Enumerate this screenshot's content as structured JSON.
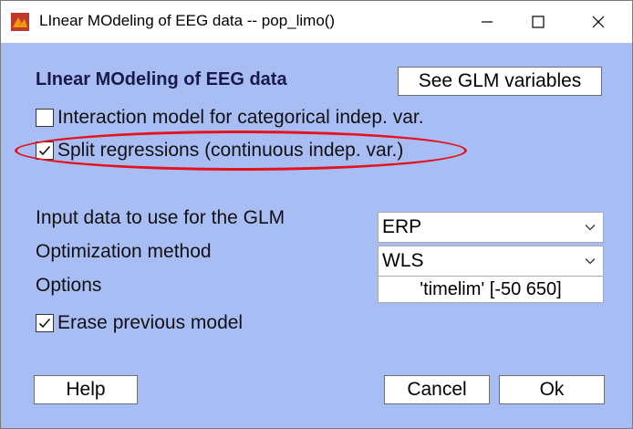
{
  "window": {
    "title": "LInear MOdeling of EEG data -- pop_limo()",
    "icon": "matlab-icon",
    "controls": [
      "minimize-icon",
      "maximize-icon",
      "close-icon"
    ]
  },
  "dialog": {
    "heading": "LInear MOdeling of EEG data",
    "glm_button": "See GLM variables",
    "interaction_checkbox": {
      "label": "Interaction model for categorical indep. var.",
      "checked": false
    },
    "split_checkbox": {
      "label": "Split regressions (continuous indep. var.)",
      "checked": true,
      "highlighted": true
    },
    "input_data": {
      "label": "Input data to use for the GLM",
      "value": "ERP"
    },
    "optimization": {
      "label": "Optimization method",
      "value": "WLS"
    },
    "options": {
      "label": "Options",
      "value": "'timelim' [-50 650]"
    },
    "erase_checkbox": {
      "label": "Erase previous model",
      "checked": true
    },
    "help_button": "Help",
    "cancel_button": "Cancel",
    "ok_button": "Ok"
  },
  "colors": {
    "dialog_background": "#a9bdf5",
    "highlight": "#e3121c",
    "heading_text": "#1a1a4a"
  }
}
